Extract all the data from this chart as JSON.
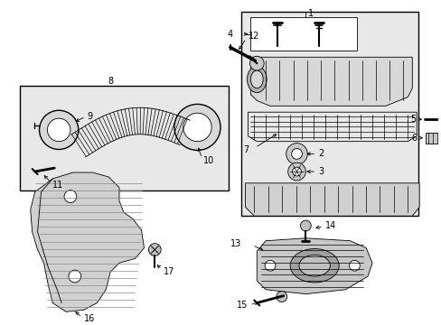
{
  "bg_color": "#ffffff",
  "line_color": "#000000",
  "gray_bg": "#e8e8e8",
  "gray_part": "#c8c8c8",
  "fig_w": 4.89,
  "fig_h": 3.6,
  "dpi": 100
}
